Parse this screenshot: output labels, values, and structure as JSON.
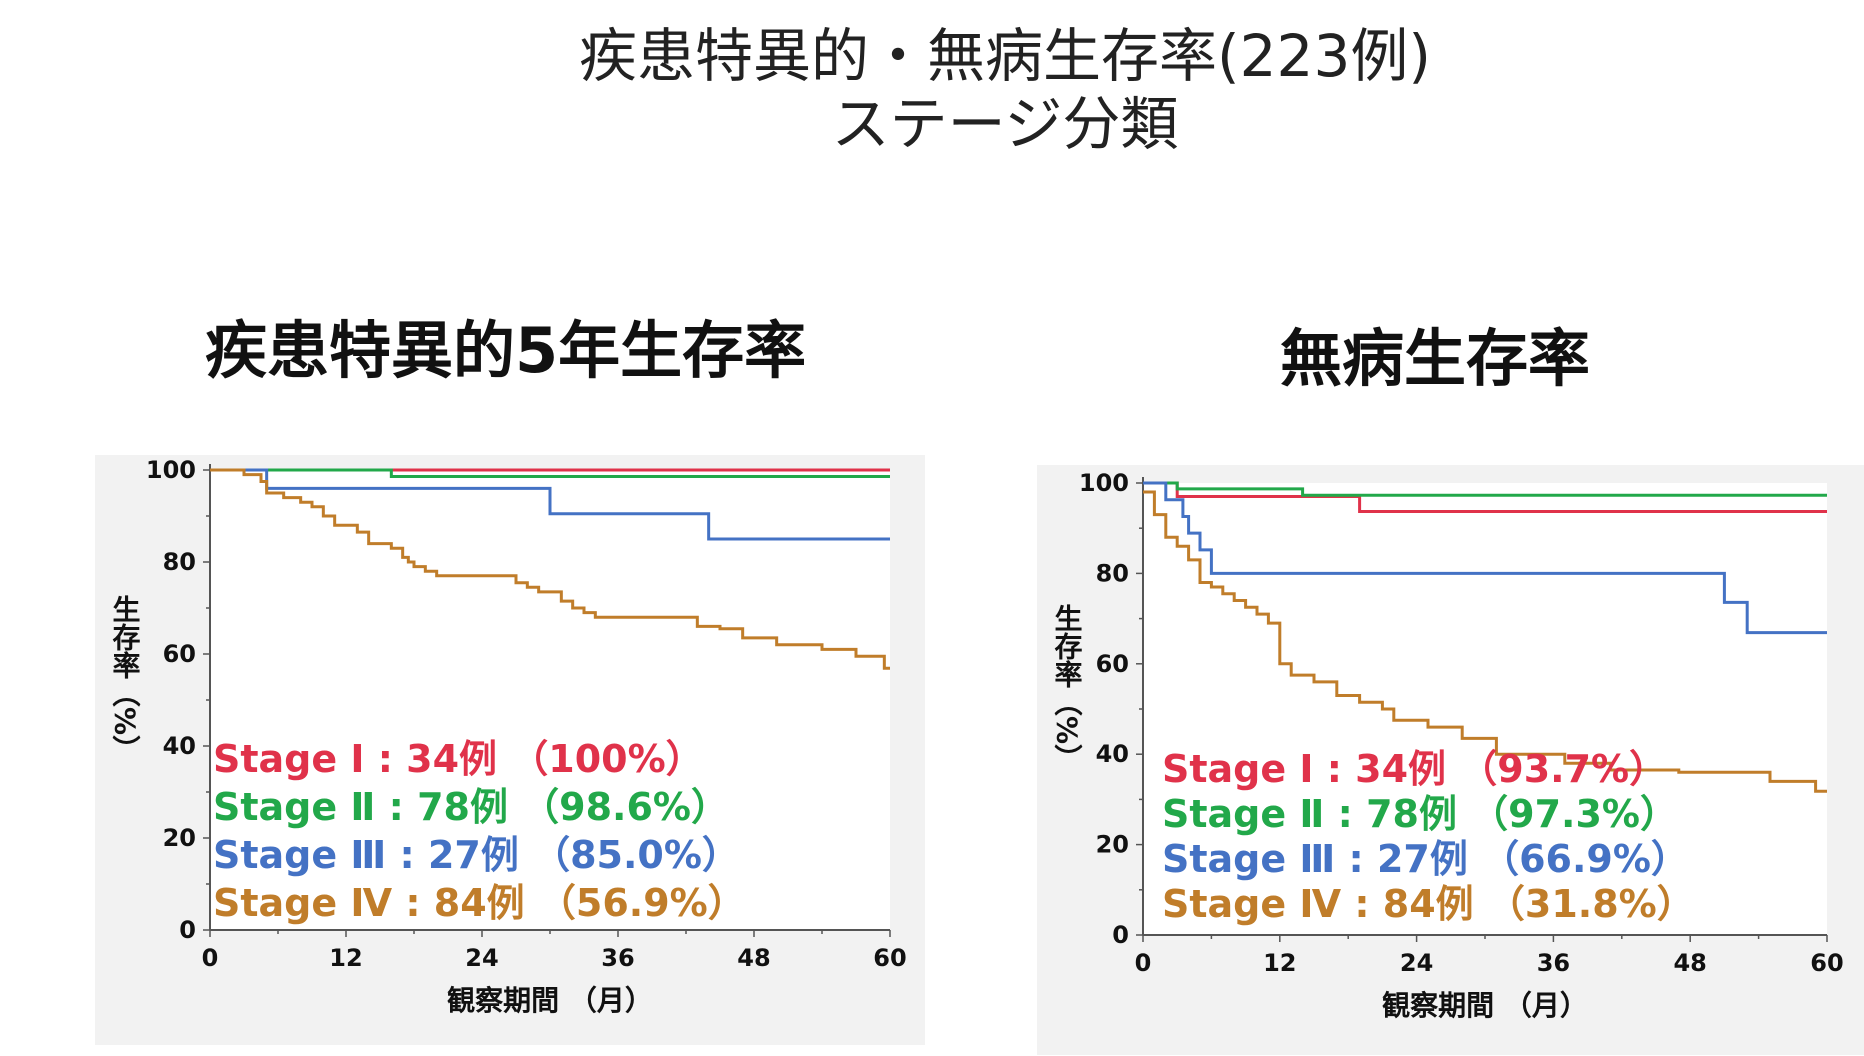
{
  "slide": {
    "title_line1": "疾患特異的・無病生存率(223例)",
    "title_line2": "ステージ分類"
  },
  "colors": {
    "stage1": "#e0324a",
    "stage2": "#22a84a",
    "stage3": "#4472c4",
    "stage4": "#c07d2a",
    "plot_bg": "#f2f2f2"
  },
  "chart_data": [
    {
      "type": "line",
      "step": true,
      "title": "疾患特異的5年生存率",
      "xlabel": "観察期間 （月）",
      "ylabel": "生存率（%）",
      "xlim": [
        0,
        60
      ],
      "ylim": [
        0,
        100
      ],
      "xticks": [
        "0",
        "12",
        "24",
        "36",
        "48",
        "60"
      ],
      "yticks": [
        "0",
        "20",
        "40",
        "60",
        "80",
        "100"
      ],
      "grid": false,
      "legend_position": "bottom-left",
      "series": [
        {
          "name": "Stage Ⅰ : 34例 （100%）",
          "color": "#e0324a",
          "x": [
            0,
            60
          ],
          "y": [
            100,
            100
          ]
        },
        {
          "name": "Stage Ⅱ : 78例 （98.6%）",
          "color": "#22a84a",
          "x": [
            0,
            16,
            60
          ],
          "y": [
            100,
            98.6,
            98.6
          ]
        },
        {
          "name": "Stage Ⅲ : 27例 （85.0%）",
          "color": "#4472c4",
          "x": [
            0,
            5,
            30,
            44,
            60
          ],
          "y": [
            100,
            96,
            90.5,
            85,
            85
          ]
        },
        {
          "name": "Stage Ⅳ : 84例 （56.9%）",
          "color": "#c07d2a",
          "x": [
            0,
            3,
            4.5,
            5,
            6.5,
            8,
            9,
            10,
            11,
            13,
            14,
            16,
            17,
            17.5,
            18,
            19,
            20,
            22,
            27,
            28,
            29,
            31,
            32,
            33,
            34,
            43,
            45,
            47,
            50,
            54,
            57,
            59.5,
            60
          ],
          "y": [
            100,
            99,
            97.5,
            95,
            94,
            93,
            92,
            90,
            88,
            86.5,
            84,
            83,
            81,
            80,
            79,
            78,
            77,
            77,
            75.5,
            74.5,
            73.5,
            71.5,
            70,
            69,
            68,
            66,
            65.5,
            63.5,
            62,
            61,
            59.5,
            56.9,
            56.9
          ]
        }
      ]
    },
    {
      "type": "line",
      "step": true,
      "title": "無病生存率",
      "xlabel": "観察期間 （月）",
      "ylabel": "生存率（%）",
      "xlim": [
        0,
        60
      ],
      "ylim": [
        0,
        100
      ],
      "xticks": [
        "0",
        "12",
        "24",
        "36",
        "48",
        "60"
      ],
      "yticks": [
        "0",
        "20",
        "40",
        "60",
        "80",
        "100"
      ],
      "grid": false,
      "legend_position": "bottom-left",
      "series": [
        {
          "name": "Stage Ⅰ : 34例 （93.7%）",
          "color": "#e0324a",
          "x": [
            0,
            3,
            19,
            60
          ],
          "y": [
            100,
            97,
            93.7,
            93.7
          ]
        },
        {
          "name": "Stage Ⅱ : 78例 （97.3%）",
          "color": "#22a84a",
          "x": [
            0,
            3,
            14,
            60
          ],
          "y": [
            100,
            98.7,
            97.3,
            97.3
          ]
        },
        {
          "name": "Stage Ⅲ : 27例 （66.9%）",
          "color": "#4472c4",
          "x": [
            0,
            2,
            3.5,
            4,
            5,
            6,
            51,
            53,
            60
          ],
          "y": [
            100,
            96.3,
            92.6,
            88.9,
            85.2,
            80,
            73.6,
            66.9,
            66.9
          ]
        },
        {
          "name": "Stage Ⅳ : 84例 （31.8%）",
          "color": "#c07d2a",
          "x": [
            0,
            1,
            2,
            3,
            4,
            5,
            6,
            7,
            8,
            9,
            10,
            11,
            12,
            13,
            15,
            17,
            19,
            21,
            22,
            25,
            28,
            31,
            37,
            41,
            47,
            55,
            59,
            60
          ],
          "y": [
            98,
            93,
            88,
            86,
            83,
            78,
            77,
            75.5,
            74,
            72.5,
            71,
            69,
            60,
            57.5,
            56,
            53,
            51.5,
            50,
            47.5,
            46,
            43.5,
            40,
            38,
            36.5,
            36,
            34,
            31.8,
            31.8
          ]
        }
      ]
    }
  ]
}
